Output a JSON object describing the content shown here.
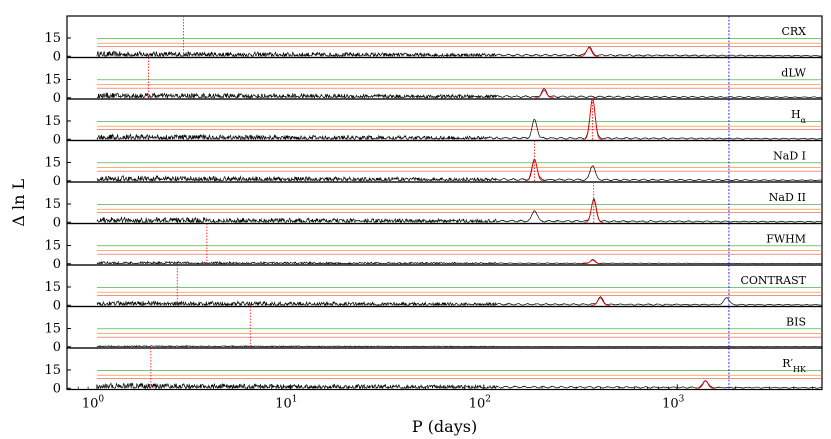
{
  "chart_data": {
    "type": "line",
    "xlabel": "P (days)",
    "ylabel": "Δ ln L",
    "xscale": "log",
    "xlim": [
      0.7,
      5600
    ],
    "x_ticks": [
      {
        "value": 1,
        "label": "10^0"
      },
      {
        "value": 10,
        "label": "10^1"
      },
      {
        "value": 100,
        "label": "10^2"
      },
      {
        "value": 1000,
        "label": "10^3"
      }
    ],
    "y_ticks": [
      0,
      15
    ],
    "shared_ylim": [
      -1,
      33
    ],
    "vertical_reference_line": {
      "x": 1850,
      "color": "#0000ff"
    },
    "threshold_lines": [
      {
        "y": 14.7,
        "color": "#2ca02c"
      },
      {
        "y": 10.7,
        "color": "#ff7f0e"
      },
      {
        "y": 7.9,
        "color": "#d62728"
      }
    ],
    "colors": {
      "periodogram": "#000000",
      "max_period_marker": "#ff0000",
      "fit_curve": "#ff0000"
    },
    "panels": [
      {
        "name": "CRX",
        "max_period": 2.8,
        "base_level": 3.5,
        "peaks": [
          {
            "x": 350,
            "y": 7
          }
        ]
      },
      {
        "name": "dLW",
        "max_period": 1.85,
        "base_level": 3.5,
        "peaks": [
          {
            "x": 205,
            "y": 6
          }
        ]
      },
      {
        "name": "H",
        "subscript": "α",
        "max_period": 365,
        "base_level": 3.5,
        "peaks": [
          {
            "x": 183,
            "y": 15
          },
          {
            "x": 365,
            "y": 33
          }
        ]
      },
      {
        "name": "NaD I",
        "max_period": 183,
        "base_level": 3.5,
        "peaks": [
          {
            "x": 183,
            "y": 17
          },
          {
            "x": 365,
            "y": 12
          }
        ]
      },
      {
        "name": "NaD II",
        "max_period": 370,
        "base_level": 3.5,
        "peaks": [
          {
            "x": 183,
            "y": 9
          },
          {
            "x": 370,
            "y": 18
          }
        ]
      },
      {
        "name": "FWHM",
        "max_period": 3.7,
        "base_level": 1.5,
        "peaks": [
          {
            "x": 365,
            "y": 3
          }
        ]
      },
      {
        "name": "CONTRAST",
        "max_period": 2.6,
        "base_level": 3.0,
        "peaks": [
          {
            "x": 400,
            "y": 6
          },
          {
            "x": 1800,
            "y": 6
          }
        ]
      },
      {
        "name": "BIS",
        "max_period": 6.2,
        "base_level": 0.8,
        "peaks": []
      },
      {
        "name": "R′",
        "subscript": "HK",
        "max_period": 1.9,
        "base_level": 3.5,
        "peaks": [
          {
            "x": 1400,
            "y": 6
          }
        ]
      }
    ]
  }
}
